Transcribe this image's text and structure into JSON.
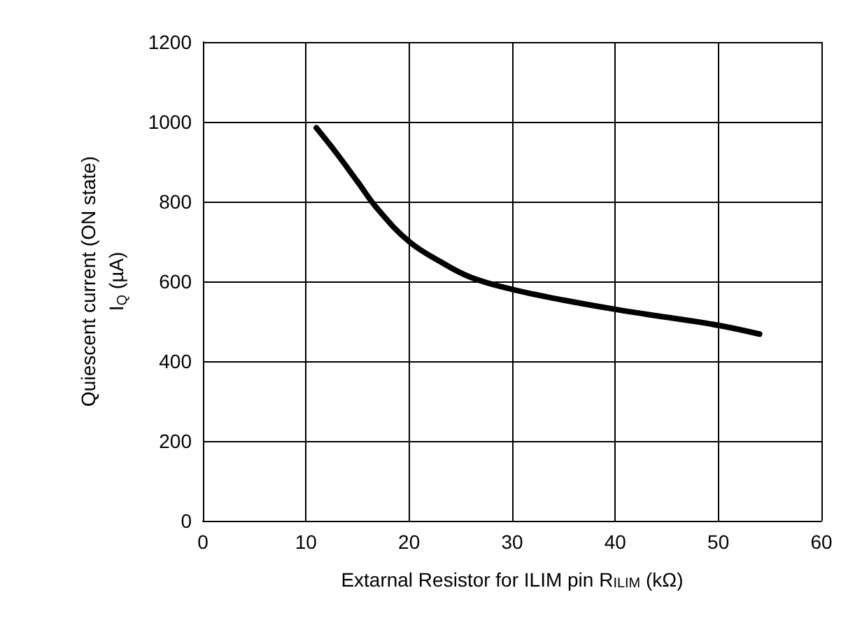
{
  "chart_data": {
    "type": "line",
    "xlabel": "Extarnal Resistor for ILIM pin R$_{ILIM}$ (kΩ)",
    "ylabel": "Quiescent current (ON state)\nI$_{Q}$ (µA)",
    "series": [
      {
        "color": "#000000",
        "x": [
          11,
          13,
          15,
          17,
          20,
          23,
          26,
          30,
          35,
          40,
          45,
          50,
          54
        ],
        "values": [
          985,
          920,
          850,
          780,
          700,
          650,
          610,
          580,
          553,
          530,
          510,
          490,
          468
        ]
      }
    ],
    "xlim": [
      0,
      60
    ],
    "xticks": [
      0,
      10,
      20,
      30,
      40,
      50,
      60
    ],
    "ylim": [
      0,
      1200
    ],
    "yticks": [
      0,
      200,
      400,
      600,
      800,
      1000,
      1200
    ],
    "grid": true,
    "marker": "none",
    "line_style": "solid"
  }
}
